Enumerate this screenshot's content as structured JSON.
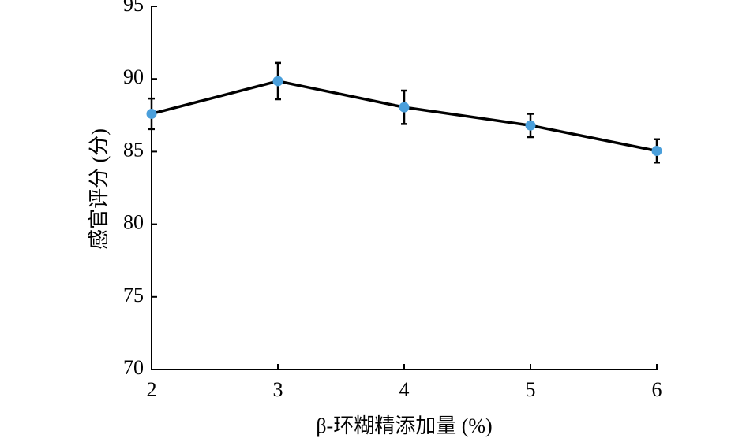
{
  "chart_data": {
    "type": "line",
    "x_label": "β-环糊精添加量 (%)",
    "y_label": "感官评分 (分)",
    "x": [
      2,
      3,
      4,
      5,
      6
    ],
    "series": [
      {
        "color": "#4a9fdb",
        "values": [
          87.6,
          89.85,
          88.05,
          86.8,
          85.05
        ],
        "errors": [
          1.05,
          1.25,
          1.15,
          0.8,
          0.8
        ]
      }
    ],
    "line_color": "#000000",
    "xlim": [
      2,
      6
    ],
    "xticks": [
      2,
      3,
      4,
      5,
      6
    ],
    "ylim": [
      70,
      95
    ],
    "yticks": [
      70,
      75,
      80,
      85,
      90,
      95
    ]
  }
}
